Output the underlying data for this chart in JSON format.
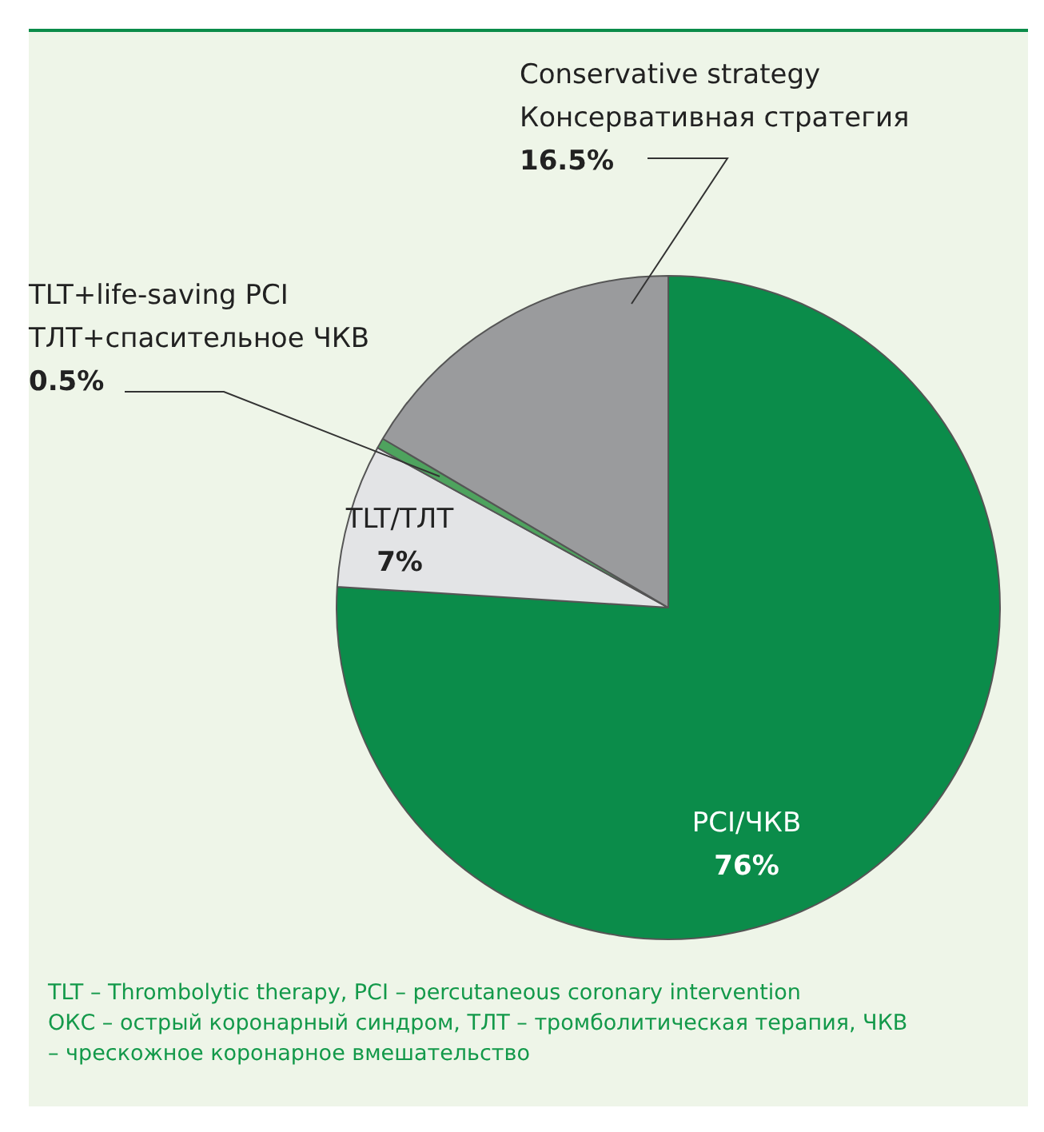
{
  "chart_data": {
    "type": "pie",
    "categories": [
      "PCI/ЧКВ",
      "TLT/ТЛТ",
      "TLT+life-saving PCI\nТЛТ+спасительное ЧКВ",
      "Conservative strategy\nКонсервативная стратегия"
    ],
    "values": [
      76,
      7,
      0.5,
      16.5
    ],
    "colors": [
      "#0b8c4a",
      "#e3e4e6",
      "#4ea35e",
      "#9a9b9d"
    ],
    "value_labels": [
      "76%",
      "7%",
      "0.5%",
      "16.5%"
    ],
    "legend": false,
    "annotations": [
      "TLT – Thrombolytic therapy, PCI – percutaneous coronary intervention",
      "ОКС – острый коронарный синдром, ТЛТ – тромболитическая терапия, ЧКВ – чрескожное коронарное вмешательство"
    ]
  }
}
